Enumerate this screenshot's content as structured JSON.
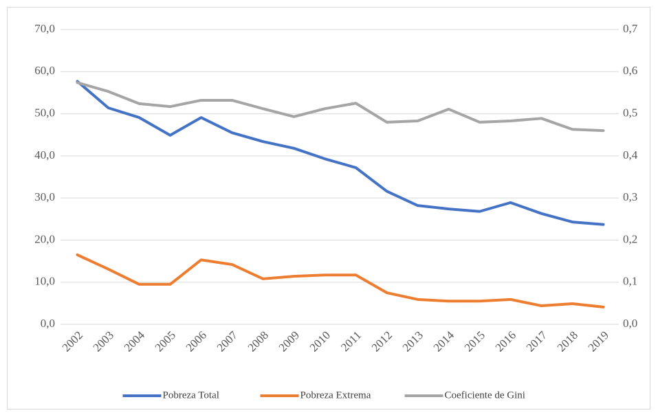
{
  "chart_data": {
    "type": "line",
    "categories": [
      "2002",
      "2003",
      "2004",
      "2005",
      "2006",
      "2007",
      "2008",
      "2009",
      "2010",
      "2011",
      "2012",
      "2013",
      "2014",
      "2015",
      "2016",
      "2017",
      "2018",
      "2019"
    ],
    "series": [
      {
        "name": "Pobreza Total",
        "color": "#4472c4",
        "values": [
          57.7,
          51.4,
          49.1,
          44.9,
          49.1,
          45.5,
          43.4,
          41.8,
          39.3,
          37.2,
          31.6,
          28.2,
          27.4,
          26.8,
          28.9,
          26.3,
          24.3,
          23.7
        ]
      },
      {
        "name": "Pobreza Extrema",
        "color": "#ed7d31",
        "values": [
          16.5,
          13.1,
          9.5,
          9.5,
          15.3,
          14.2,
          10.8,
          11.4,
          11.7,
          11.7,
          7.5,
          5.9,
          5.5,
          5.5,
          5.9,
          4.4,
          4.9,
          4.1
        ]
      },
      {
        "name": "Coeficiente de Gini",
        "color": "#a5a5a5",
        "axis": "y2",
        "values": [
          0.574,
          0.553,
          0.524,
          0.517,
          0.532,
          0.532,
          0.512,
          0.493,
          0.512,
          0.525,
          0.48,
          0.483,
          0.511,
          0.48,
          0.483,
          0.489,
          0.463,
          0.46
        ]
      }
    ],
    "ylim": [
      0,
      70
    ],
    "yticks": [
      {
        "value": 0,
        "label": "0,0"
      },
      {
        "value": 10,
        "label": "10,0"
      },
      {
        "value": 20,
        "label": "20,0"
      },
      {
        "value": 30,
        "label": "30,0"
      },
      {
        "value": 40,
        "label": "40,0"
      },
      {
        "value": 50,
        "label": "50,0"
      },
      {
        "value": 60,
        "label": "60,0"
      },
      {
        "value": 70,
        "label": "70,0"
      }
    ],
    "y2lim": [
      0,
      0.7
    ],
    "y2ticks": [
      {
        "value": 0,
        "label": "0,0"
      },
      {
        "value": 0.1,
        "label": "0,1"
      },
      {
        "value": 0.2,
        "label": "0,2"
      },
      {
        "value": 0.3,
        "label": "0,3"
      },
      {
        "value": 0.4,
        "label": "0,4"
      },
      {
        "value": 0.5,
        "label": "0,5"
      },
      {
        "value": 0.6,
        "label": "0,6"
      },
      {
        "value": 0.7,
        "label": "0,7"
      }
    ],
    "grid": true,
    "legend": "bottom"
  }
}
